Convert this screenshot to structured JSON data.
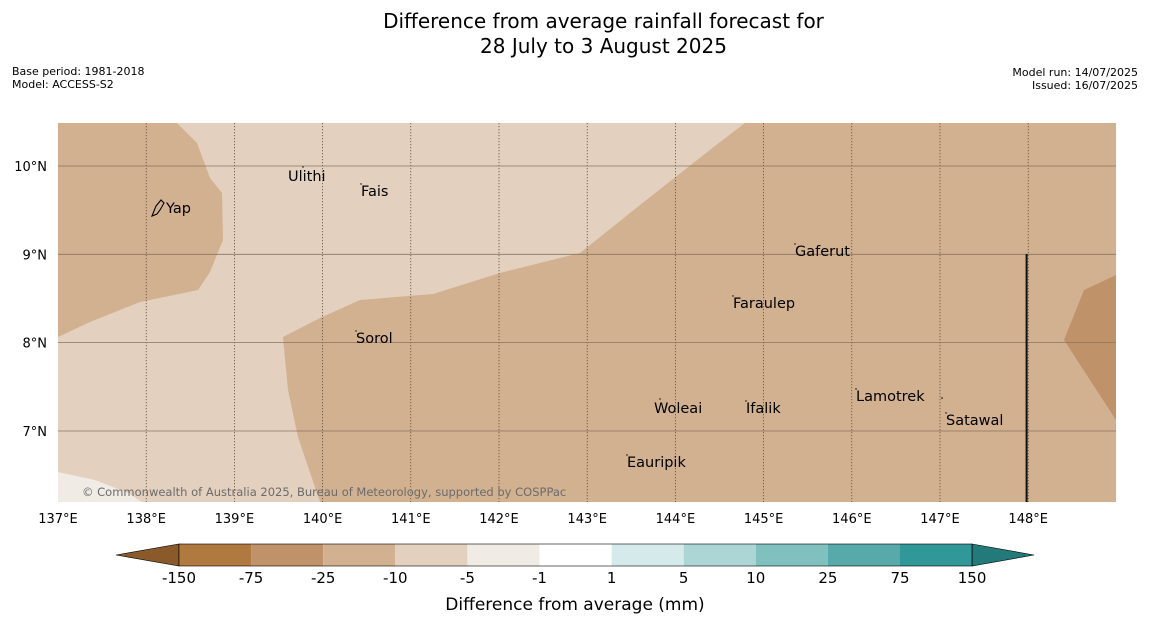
{
  "header": {
    "title_line1": "Difference from average rainfall forecast for",
    "title_line2": "28 July to 3 August 2025",
    "base_period": "Base period: 1981-2018",
    "model": "Model: ACCESS-S2",
    "model_run": "Model run: 14/07/2025",
    "issued": "Issued: 16/07/2025"
  },
  "map": {
    "lon_ticks": [
      "137°E",
      "138°E",
      "139°E",
      "140°E",
      "141°E",
      "142°E",
      "143°E",
      "144°E",
      "145°E",
      "146°E",
      "147°E",
      "148°E"
    ],
    "lat_ticks": [
      "10°N",
      "9°N",
      "8°N",
      "7°N"
    ],
    "places": [
      {
        "name": "Yap"
      },
      {
        "name": "Ulithi"
      },
      {
        "name": "Fais"
      },
      {
        "name": "Gaferut"
      },
      {
        "name": "Faraulep"
      },
      {
        "name": "Sorol"
      },
      {
        "name": "Woleai"
      },
      {
        "name": "Ifalik"
      },
      {
        "name": "Lamotrek"
      },
      {
        "name": "Satawal"
      },
      {
        "name": "Eauripik"
      }
    ],
    "copyright": "© Commonwealth of Australia 2025, Bureau of Meteorology, supported by COSPPac"
  },
  "colorbar": {
    "title": "Difference from average (mm)",
    "tick_labels": [
      "-150",
      "-75",
      "-25",
      "-10",
      "-5",
      "-1",
      "1",
      "5",
      "10",
      "25",
      "75",
      "150"
    ],
    "colors": {
      "lt_m150": "#8b5a2b",
      "m150_m75": "#b07940",
      "m75_m25": "#c09269",
      "m25_m10": "#d2b190",
      "m10_m5": "#e3d0be",
      "m5_m1": "#f1ebe5",
      "m1_1": "#ffffff",
      "1_5": "#d5eaea",
      "5_10": "#acd6d6",
      "10_25": "#80c0bf",
      "25_75": "#58aaaa",
      "75_150": "#309898",
      "gt_150": "#237a7a"
    }
  }
}
